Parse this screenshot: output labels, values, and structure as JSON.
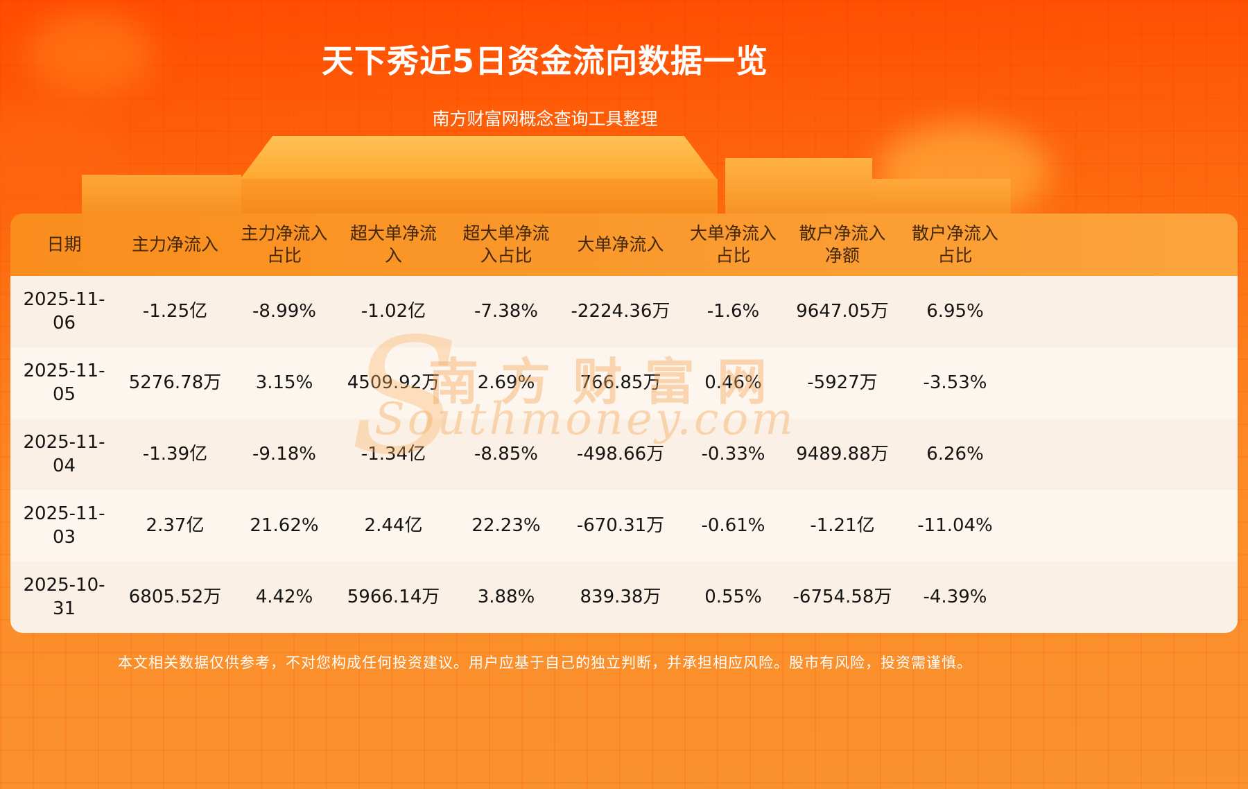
{
  "page": {
    "title": "天下秀近5日资金流向数据一览",
    "subtitle": "南方财富网概念查询工具整理",
    "disclaimer": "本文相关数据仅供参考，不对您构成任何投资建议。用户应基于自己的独立判断，并承担相应风险。股市有风险，投资需谨慎。"
  },
  "watermark": {
    "initial": "S",
    "cn": "南方财富网",
    "en": "Southmoney.com"
  },
  "chart_data": {
    "type": "table",
    "title": "天下秀近5日资金流向数据一览",
    "columns": [
      "日期",
      "主力净流入",
      "主力净流入占比",
      "超大单净流入",
      "超大单净流入占比",
      "大单净流入",
      "大单净流入占比",
      "散户净流入净额",
      "散户净流入占比"
    ],
    "rows": [
      [
        "2025-11-06",
        "-1.25亿",
        "-8.99%",
        "-1.02亿",
        "-7.38%",
        "-2224.36万",
        "-1.6%",
        "9647.05万",
        "6.95%"
      ],
      [
        "2025-11-05",
        "5276.78万",
        "3.15%",
        "4509.92万",
        "2.69%",
        "766.85万",
        "0.46%",
        "-5927万",
        "-3.53%"
      ],
      [
        "2025-11-04",
        "-1.39亿",
        "-9.18%",
        "-1.34亿",
        "-8.85%",
        "-498.66万",
        "-0.33%",
        "9489.88万",
        "6.26%"
      ],
      [
        "2025-11-03",
        "2.37亿",
        "21.62%",
        "2.44亿",
        "22.23%",
        "-670.31万",
        "-0.61%",
        "-1.21亿",
        "-11.04%"
      ],
      [
        "2025-10-31",
        "6805.52万",
        "4.42%",
        "5966.14万",
        "3.88%",
        "839.38万",
        "0.55%",
        "-6754.58万",
        "-4.39%"
      ]
    ]
  },
  "colors": {
    "bg_top": "#ff4b00",
    "bg_bottom": "#f9922f",
    "header_start": "#f98e1d",
    "header_end": "#fca43c",
    "header_text": "#42270a",
    "row_odd": "#fbf0e6",
    "row_even": "#fdf6ef",
    "cell_text": "#141414",
    "title_text": "#ffffff"
  }
}
